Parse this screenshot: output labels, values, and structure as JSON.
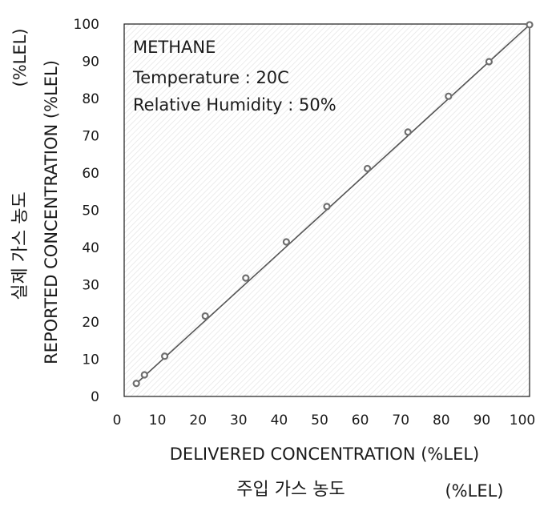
{
  "chart_data": {
    "type": "scatter",
    "x": [
      3,
      5,
      10,
      20,
      30,
      40,
      50,
      60,
      70,
      80,
      90,
      100
    ],
    "y": [
      3.5,
      5.8,
      10.8,
      21.6,
      31.8,
      41.5,
      51.0,
      61.2,
      71.0,
      80.6,
      89.9,
      99.8
    ],
    "trendline": {
      "from": [
        3,
        3.5
      ],
      "to": [
        100,
        99.8
      ]
    },
    "xlim": [
      0,
      100
    ],
    "ylim": [
      0,
      100
    ],
    "xticks": [
      0,
      10,
      20,
      30,
      40,
      50,
      60,
      70,
      80,
      90,
      100
    ],
    "yticks": [
      0,
      10,
      20,
      30,
      40,
      50,
      60,
      70,
      80,
      90,
      100
    ],
    "xlabel": "DELIVERED CONCENTRATION (%LEL)",
    "xlabel_ko": "주입 가스 농도",
    "xlabel_unit": "(%LEL)",
    "ylabel": "REPORTED CONCENTRATION (%LEL)",
    "ylabel_ko": "실제 가스 농도",
    "ylabel_unit": "(%LEL)",
    "annotations": [
      "METHANE",
      "Temperature : 20C",
      "Relative Humidity : 50%"
    ],
    "grid": false,
    "colors": {
      "marker": "#6e6e6e",
      "line": "#555555",
      "plot_border": "#1a1a1a"
    }
  }
}
